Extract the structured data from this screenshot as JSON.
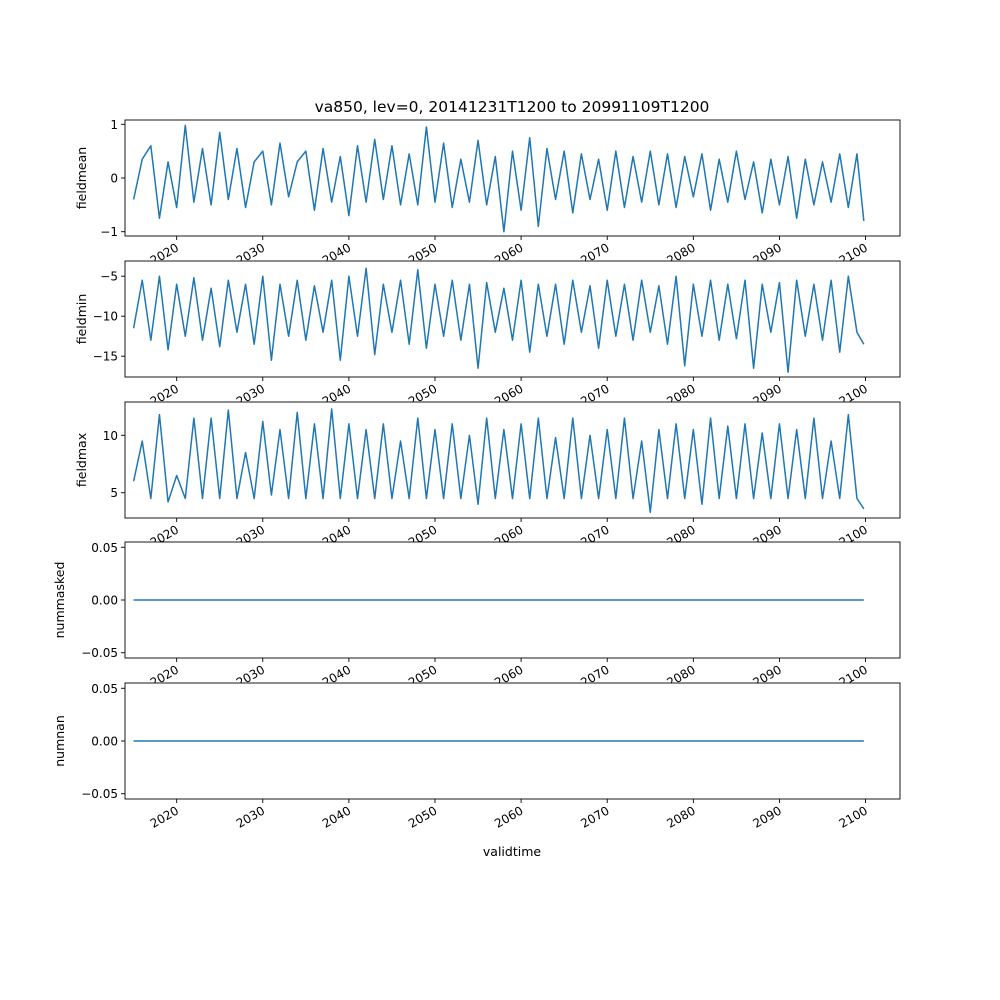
{
  "title": "va850, lev=0, 20141231T1200 to 20991109T1200",
  "xlabel": "validtime",
  "line_color": "#1f77b4",
  "chart_data": [
    {
      "type": "line",
      "ylabel": "fieldmean",
      "xlim": [
        2014.0,
        2104.0
      ],
      "ylim": [
        -1.08,
        1.08
      ],
      "yticks": [
        -1,
        0,
        1
      ],
      "ytick_labels": [
        "−1",
        "0",
        "1"
      ],
      "xticks": [
        2020,
        2030,
        2040,
        2050,
        2060,
        2070,
        2080,
        2090,
        2100
      ],
      "xtick_labels": [
        "2020",
        "2030",
        "2040",
        "2050",
        "2060",
        "2070",
        "2080",
        "2090",
        "2100"
      ],
      "x": [
        2015.0,
        2016.0,
        2017.0,
        2018.0,
        2019.0,
        2020.0,
        2021.0,
        2022.0,
        2023.0,
        2024.0,
        2025.0,
        2026.0,
        2027.0,
        2028.0,
        2029.0,
        2030.0,
        2031.0,
        2032.0,
        2033.0,
        2034.0,
        2035.0,
        2036.0,
        2037.0,
        2038.0,
        2039.0,
        2040.0,
        2041.0,
        2042.0,
        2043.0,
        2044.0,
        2045.0,
        2046.0,
        2047.0,
        2048.0,
        2049.0,
        2050.0,
        2051.0,
        2052.0,
        2053.0,
        2054.0,
        2055.0,
        2056.0,
        2057.0,
        2058.0,
        2059.0,
        2060.0,
        2061.0,
        2062.0,
        2063.0,
        2064.0,
        2065.0,
        2066.0,
        2067.0,
        2068.0,
        2069.0,
        2070.0,
        2071.0,
        2072.0,
        2073.0,
        2074.0,
        2075.0,
        2076.0,
        2077.0,
        2078.0,
        2079.0,
        2080.0,
        2081.0,
        2082.0,
        2083.0,
        2084.0,
        2085.0,
        2086.0,
        2087.0,
        2088.0,
        2089.0,
        2090.0,
        2091.0,
        2092.0,
        2093.0,
        2094.0,
        2095.0,
        2096.0,
        2097.0,
        2098.0,
        2099.0,
        2099.8
      ],
      "y": [
        -0.4,
        0.35,
        0.6,
        -0.75,
        0.3,
        -0.55,
        0.98,
        -0.45,
        0.55,
        -0.5,
        0.85,
        -0.4,
        0.55,
        -0.55,
        0.3,
        0.5,
        -0.5,
        0.65,
        -0.35,
        0.3,
        0.5,
        -0.6,
        0.55,
        -0.45,
        0.4,
        -0.7,
        0.6,
        -0.45,
        0.72,
        -0.4,
        0.6,
        -0.5,
        0.45,
        -0.5,
        0.95,
        -0.45,
        0.65,
        -0.55,
        0.35,
        -0.45,
        0.7,
        -0.5,
        0.4,
        -1.0,
        0.5,
        -0.6,
        0.75,
        -0.9,
        0.55,
        -0.4,
        0.5,
        -0.65,
        0.45,
        -0.4,
        0.35,
        -0.6,
        0.5,
        -0.55,
        0.4,
        -0.45,
        0.5,
        -0.5,
        0.45,
        -0.55,
        0.4,
        -0.35,
        0.45,
        -0.6,
        0.35,
        -0.45,
        0.5,
        -0.4,
        0.3,
        -0.65,
        0.35,
        -0.5,
        0.4,
        -0.75,
        0.35,
        -0.5,
        0.3,
        -0.45,
        0.45,
        -0.55,
        0.45,
        -0.8
      ]
    },
    {
      "type": "line",
      "ylabel": "fieldmin",
      "xlim": [
        2014.0,
        2104.0
      ],
      "ylim": [
        -17.6,
        -3.1
      ],
      "yticks": [
        -15,
        -10,
        -5
      ],
      "ytick_labels": [
        "−15",
        "−10",
        "−5"
      ],
      "xticks": [
        2020,
        2030,
        2040,
        2050,
        2060,
        2070,
        2080,
        2090,
        2100
      ],
      "xtick_labels": [
        "2020",
        "2030",
        "2040",
        "2050",
        "2060",
        "2070",
        "2080",
        "2090",
        "2100"
      ],
      "x": [
        2015.0,
        2016.0,
        2017.0,
        2018.0,
        2019.0,
        2020.0,
        2021.0,
        2022.0,
        2023.0,
        2024.0,
        2025.0,
        2026.0,
        2027.0,
        2028.0,
        2029.0,
        2030.0,
        2031.0,
        2032.0,
        2033.0,
        2034.0,
        2035.0,
        2036.0,
        2037.0,
        2038.0,
        2039.0,
        2040.0,
        2041.0,
        2042.0,
        2043.0,
        2044.0,
        2045.0,
        2046.0,
        2047.0,
        2048.0,
        2049.0,
        2050.0,
        2051.0,
        2052.0,
        2053.0,
        2054.0,
        2055.0,
        2056.0,
        2057.0,
        2058.0,
        2059.0,
        2060.0,
        2061.0,
        2062.0,
        2063.0,
        2064.0,
        2065.0,
        2066.0,
        2067.0,
        2068.0,
        2069.0,
        2070.0,
        2071.0,
        2072.0,
        2073.0,
        2074.0,
        2075.0,
        2076.0,
        2077.0,
        2078.0,
        2079.0,
        2080.0,
        2081.0,
        2082.0,
        2083.0,
        2084.0,
        2085.0,
        2086.0,
        2087.0,
        2088.0,
        2089.0,
        2090.0,
        2091.0,
        2092.0,
        2093.0,
        2094.0,
        2095.0,
        2096.0,
        2097.0,
        2098.0,
        2099.0,
        2099.8
      ],
      "y": [
        -11.5,
        -5.5,
        -13.0,
        -5.0,
        -14.2,
        -6.0,
        -12.5,
        -5.2,
        -13.0,
        -6.5,
        -13.8,
        -5.5,
        -12.0,
        -6.0,
        -13.5,
        -5.0,
        -15.5,
        -6.0,
        -12.5,
        -5.5,
        -13.0,
        -6.2,
        -12.0,
        -5.5,
        -15.5,
        -5.0,
        -12.5,
        -4.0,
        -14.8,
        -6.0,
        -12.0,
        -5.5,
        -13.5,
        -4.2,
        -14.0,
        -6.0,
        -12.5,
        -5.5,
        -13.0,
        -6.0,
        -16.5,
        -5.8,
        -12.0,
        -6.5,
        -13.0,
        -5.5,
        -14.5,
        -6.0,
        -12.5,
        -6.0,
        -13.5,
        -5.5,
        -12.0,
        -6.2,
        -14.0,
        -5.5,
        -12.5,
        -6.0,
        -13.0,
        -5.5,
        -12.0,
        -6.2,
        -13.5,
        -5.0,
        -16.2,
        -6.0,
        -12.5,
        -5.5,
        -13.0,
        -6.0,
        -12.8,
        -5.5,
        -16.5,
        -6.0,
        -12.0,
        -5.8,
        -17.0,
        -5.5,
        -12.5,
        -6.0,
        -13.0,
        -5.5,
        -14.5,
        -5.0,
        -12.0,
        -13.5
      ]
    },
    {
      "type": "line",
      "ylabel": "fieldmax",
      "xlim": [
        2014.0,
        2104.0
      ],
      "ylim": [
        2.8,
        12.9
      ],
      "yticks": [
        5,
        10
      ],
      "ytick_labels": [
        "5",
        "10"
      ],
      "xticks": [
        2020,
        2030,
        2040,
        2050,
        2060,
        2070,
        2080,
        2090,
        2100
      ],
      "xtick_labels": [
        "2020",
        "2030",
        "2040",
        "2050",
        "2060",
        "2070",
        "2080",
        "2090",
        "2100"
      ],
      "x": [
        2015.0,
        2016.0,
        2017.0,
        2018.0,
        2019.0,
        2020.0,
        2021.0,
        2022.0,
        2023.0,
        2024.0,
        2025.0,
        2026.0,
        2027.0,
        2028.0,
        2029.0,
        2030.0,
        2031.0,
        2032.0,
        2033.0,
        2034.0,
        2035.0,
        2036.0,
        2037.0,
        2038.0,
        2039.0,
        2040.0,
        2041.0,
        2042.0,
        2043.0,
        2044.0,
        2045.0,
        2046.0,
        2047.0,
        2048.0,
        2049.0,
        2050.0,
        2051.0,
        2052.0,
        2053.0,
        2054.0,
        2055.0,
        2056.0,
        2057.0,
        2058.0,
        2059.0,
        2060.0,
        2061.0,
        2062.0,
        2063.0,
        2064.0,
        2065.0,
        2066.0,
        2067.0,
        2068.0,
        2069.0,
        2070.0,
        2071.0,
        2072.0,
        2073.0,
        2074.0,
        2075.0,
        2076.0,
        2077.0,
        2078.0,
        2079.0,
        2080.0,
        2081.0,
        2082.0,
        2083.0,
        2084.0,
        2085.0,
        2086.0,
        2087.0,
        2088.0,
        2089.0,
        2090.0,
        2091.0,
        2092.0,
        2093.0,
        2094.0,
        2095.0,
        2096.0,
        2097.0,
        2098.0,
        2099.0,
        2099.8
      ],
      "y": [
        6.0,
        9.5,
        4.5,
        11.8,
        4.2,
        6.5,
        4.5,
        11.5,
        4.5,
        11.5,
        4.5,
        12.2,
        4.5,
        8.5,
        4.5,
        11.2,
        4.8,
        10.5,
        4.5,
        12.0,
        4.5,
        11.0,
        4.5,
        12.3,
        4.5,
        11.0,
        4.5,
        10.5,
        4.5,
        11.0,
        4.5,
        9.5,
        4.5,
        11.5,
        4.5,
        10.5,
        4.5,
        11.0,
        4.5,
        10.0,
        4.0,
        11.5,
        4.5,
        10.5,
        4.5,
        11.0,
        4.5,
        11.5,
        4.5,
        9.8,
        4.5,
        11.5,
        4.5,
        10.0,
        4.5,
        10.5,
        4.5,
        11.5,
        4.5,
        9.5,
        3.3,
        10.5,
        4.5,
        11.0,
        4.5,
        10.5,
        4.0,
        11.5,
        4.5,
        10.8,
        4.5,
        11.0,
        4.5,
        10.2,
        4.5,
        11.0,
        4.5,
        10.5,
        4.5,
        11.5,
        4.5,
        9.5,
        4.5,
        11.8,
        4.5,
        3.6
      ]
    },
    {
      "type": "line",
      "ylabel": "nummasked",
      "xlim": [
        2014.0,
        2104.0
      ],
      "ylim": [
        -0.055,
        0.055
      ],
      "yticks": [
        -0.05,
        0.0,
        0.05
      ],
      "ytick_labels": [
        "−0.05",
        "0.00",
        "0.05"
      ],
      "xticks": [
        2020,
        2030,
        2040,
        2050,
        2060,
        2070,
        2080,
        2090,
        2100
      ],
      "xtick_labels": [
        "2020",
        "2030",
        "2040",
        "2050",
        "2060",
        "2070",
        "2080",
        "2090",
        "2100"
      ],
      "x": [
        2015.0,
        2099.8
      ],
      "y": [
        0.0,
        0.0
      ]
    },
    {
      "type": "line",
      "ylabel": "numnan",
      "xlim": [
        2014.0,
        2104.0
      ],
      "ylim": [
        -0.055,
        0.055
      ],
      "yticks": [
        -0.05,
        0.0,
        0.05
      ],
      "ytick_labels": [
        "−0.05",
        "0.00",
        "0.05"
      ],
      "xticks": [
        2020,
        2030,
        2040,
        2050,
        2060,
        2070,
        2080,
        2090,
        2100
      ],
      "xtick_labels": [
        "2020",
        "2030",
        "2040",
        "2050",
        "2060",
        "2070",
        "2080",
        "2090",
        "2100"
      ],
      "x": [
        2015.0,
        2099.8
      ],
      "y": [
        0.0,
        0.0
      ]
    }
  ]
}
